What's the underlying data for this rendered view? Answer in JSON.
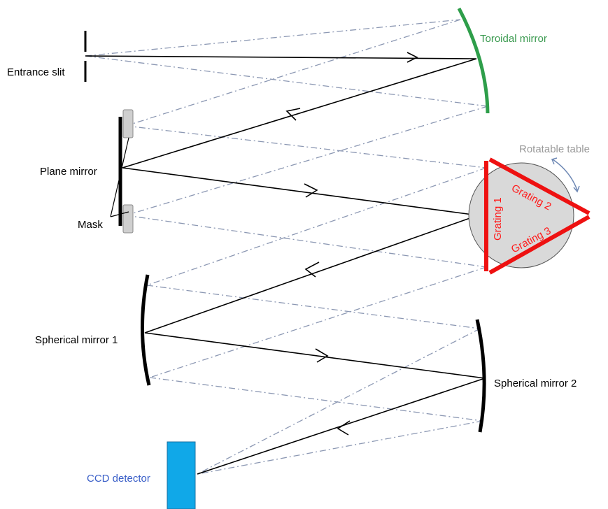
{
  "labels": {
    "entrance_slit": "Entrance slit",
    "toroidal_mirror": "Toroidal mirror",
    "plane_mirror": "Plane mirror",
    "mask": "Mask",
    "rotatable_table": "Rotatable table",
    "grating_1": "Grating 1",
    "grating_2": "Grating 2",
    "grating_3": "Grating 3",
    "spherical_mirror_1": "Spherical mirror 1",
    "spherical_mirror_2": "Spherical mirror 2",
    "ccd_detector": "CCD detector"
  },
  "colors": {
    "toroidal_mirror": "#2e9e4a",
    "gratings": "#ee1111",
    "rotatable_table_fill": "#d9d9d9",
    "ccd_detector": "#10a8e8",
    "dashed_rays": "#8c98b3",
    "main_ray": "#000000",
    "mask_fill": "#cfcfcf"
  }
}
